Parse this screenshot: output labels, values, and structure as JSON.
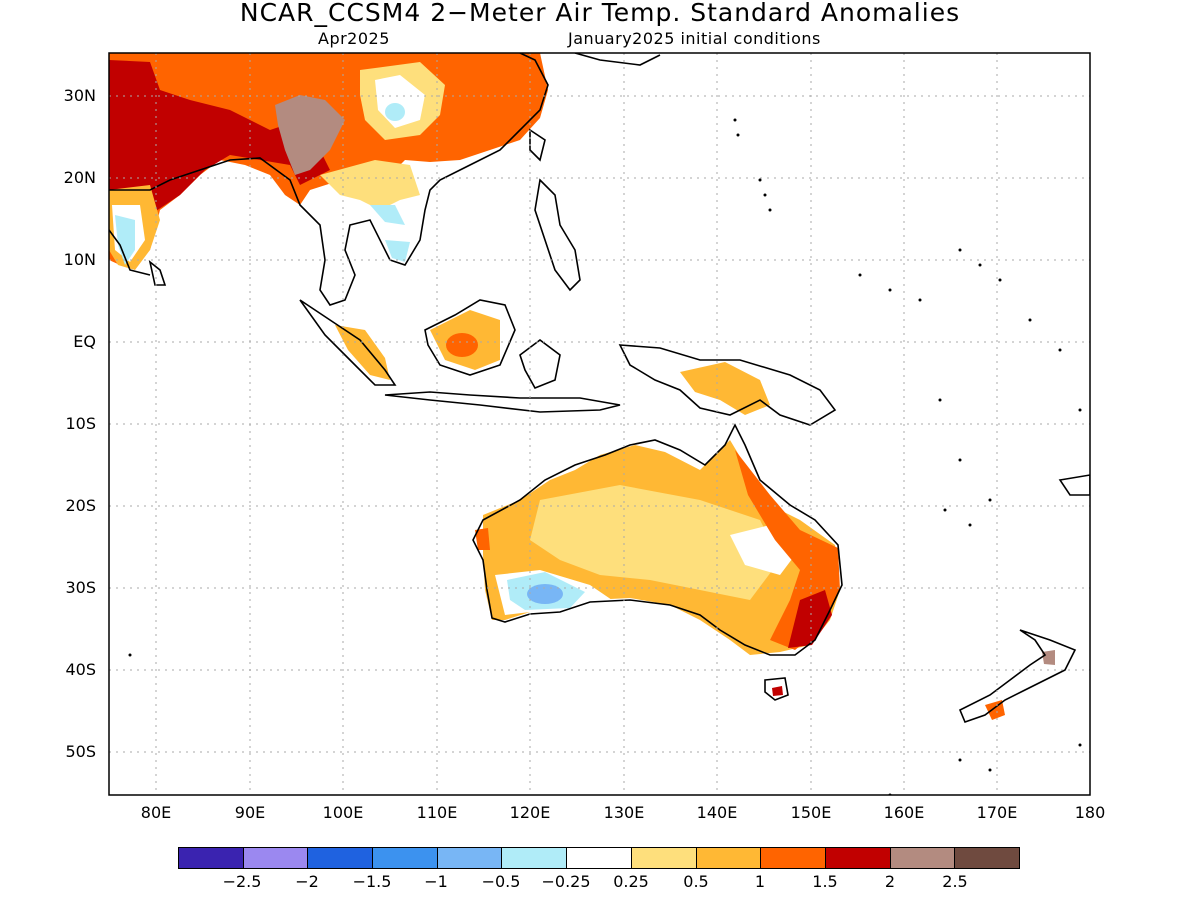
{
  "title": "NCAR_CCSM4 2−Meter Air Temp. Standard Anomalies",
  "subtitle_left": "Apr2025",
  "subtitle_right": "January2025 initial conditions",
  "lat_labels": [
    "30N",
    "20N",
    "10N",
    "EQ",
    "10S",
    "20S",
    "30S",
    "40S",
    "50S"
  ],
  "lon_labels": [
    "80E",
    "90E",
    "100E",
    "110E",
    "120E",
    "130E",
    "140E",
    "150E",
    "160E",
    "170E",
    "180"
  ],
  "colorbar": {
    "colors": [
      "#3a23b0",
      "#9b88f0",
      "#1f62e0",
      "#3c92ef",
      "#78b6f5",
      "#b0ecf8",
      "#ffffff",
      "#fedf7c",
      "#ffb834",
      "#ff6400",
      "#c10000",
      "#b38b80",
      "#6f4a3f"
    ],
    "labels": [
      "−2.5",
      "−2",
      "−1.5",
      "−1",
      "−0.5",
      "−0.25",
      "0.25",
      "0.5",
      "1",
      "1.5",
      "2",
      "2.5"
    ]
  },
  "map_colors": {
    "land_outline": "#000000",
    "grid": "#aaaaaa"
  }
}
